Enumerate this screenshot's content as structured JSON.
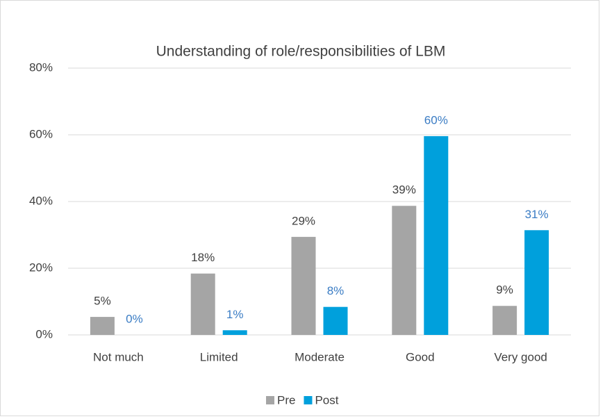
{
  "chart_data": {
    "type": "bar",
    "title": "Understanding of role/responsibilities of LBM",
    "categories": [
      "Not much",
      "Limited",
      "Moderate",
      "Good",
      "Very good"
    ],
    "series": [
      {
        "name": "Pre",
        "color": "#a5a5a5",
        "label_color": "#404040",
        "values": [
          5.4,
          18.4,
          29.4,
          38.7,
          8.7
        ],
        "value_labels": [
          "5%",
          "18%",
          "29%",
          "39%",
          "9%"
        ]
      },
      {
        "name": "Post",
        "color": "#00a0dc",
        "label_color": "#3a7cc4",
        "values": [
          0,
          1.4,
          8.4,
          59.6,
          31.4
        ],
        "value_labels": [
          "0%",
          "1%",
          "8%",
          "60%",
          "31%"
        ]
      }
    ],
    "ylim": [
      0,
      80
    ],
    "yticks": [
      {
        "value": 0,
        "label": "0%"
      },
      {
        "value": 20,
        "label": "20%"
      },
      {
        "value": 40,
        "label": "40%"
      },
      {
        "value": 60,
        "label": "60%"
      },
      {
        "value": 80,
        "label": "80%"
      }
    ],
    "grid": true,
    "legend": "bottom"
  }
}
